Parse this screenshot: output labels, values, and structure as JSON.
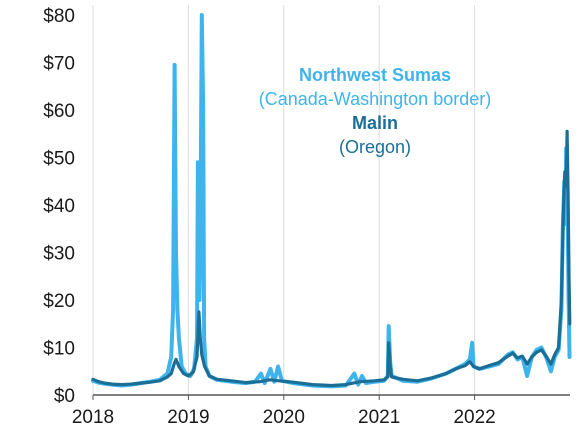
{
  "chart_data": {
    "type": "line",
    "x_axis": {
      "min": 2018,
      "max": 2023,
      "ticks": [
        "2018",
        "2019",
        "2020",
        "2021",
        "2022"
      ]
    },
    "y_axis": {
      "min": 0,
      "max": 80,
      "ticks": [
        "$0",
        "$10",
        "$20",
        "$30",
        "$40",
        "$50",
        "$60",
        "$70",
        "$80"
      ]
    },
    "grid": {
      "vertical": true,
      "horizontal": false
    },
    "legend": {
      "placement": "top-center",
      "entries": [
        {
          "name": "Northwest Sumas",
          "sub": "(Canada-Washington border)",
          "color": "#3fb4ec"
        },
        {
          "name": "Malin",
          "sub": "(Oregon)",
          "color": "#1b6f97"
        }
      ]
    },
    "series": [
      {
        "name": "Northwest Sumas",
        "color": "#3fb4ec",
        "points": [
          [
            2018.0,
            3.0
          ],
          [
            2018.06,
            2.6
          ],
          [
            2018.12,
            2.4
          ],
          [
            2018.2,
            2.2
          ],
          [
            2018.3,
            2.0
          ],
          [
            2018.4,
            2.2
          ],
          [
            2018.5,
            2.5
          ],
          [
            2018.6,
            2.8
          ],
          [
            2018.7,
            3.2
          ],
          [
            2018.78,
            4.5
          ],
          [
            2018.82,
            8.0
          ],
          [
            2018.84,
            18.0
          ],
          [
            2018.855,
            69.5
          ],
          [
            2018.87,
            30.0
          ],
          [
            2018.885,
            18.0
          ],
          [
            2018.9,
            12.0
          ],
          [
            2018.93,
            6.0
          ],
          [
            2018.97,
            4.5
          ],
          [
            2019.02,
            4.0
          ],
          [
            2019.06,
            5.5
          ],
          [
            2019.09,
            12.0
          ],
          [
            2019.1,
            49.0
          ],
          [
            2019.115,
            20.0
          ],
          [
            2019.125,
            30.0
          ],
          [
            2019.14,
            80.0
          ],
          [
            2019.155,
            60.0
          ],
          [
            2019.165,
            12.0
          ],
          [
            2019.18,
            6.0
          ],
          [
            2019.22,
            4.0
          ],
          [
            2019.3,
            3.2
          ],
          [
            2019.45,
            2.8
          ],
          [
            2019.6,
            2.5
          ],
          [
            2019.7,
            2.8
          ],
          [
            2019.76,
            4.5
          ],
          [
            2019.8,
            2.5
          ],
          [
            2019.86,
            5.5
          ],
          [
            2019.9,
            2.8
          ],
          [
            2019.94,
            6.0
          ],
          [
            2019.98,
            3.0
          ],
          [
            2020.1,
            2.5
          ],
          [
            2020.3,
            2.0
          ],
          [
            2020.5,
            1.8
          ],
          [
            2020.65,
            2.0
          ],
          [
            2020.74,
            4.5
          ],
          [
            2020.78,
            2.2
          ],
          [
            2020.82,
            4.0
          ],
          [
            2020.86,
            2.5
          ],
          [
            2020.95,
            2.8
          ],
          [
            2021.05,
            3.0
          ],
          [
            2021.09,
            4.0
          ],
          [
            2021.1,
            14.5
          ],
          [
            2021.115,
            7.0
          ],
          [
            2021.13,
            4.0
          ],
          [
            2021.25,
            3.0
          ],
          [
            2021.4,
            2.8
          ],
          [
            2021.55,
            3.5
          ],
          [
            2021.7,
            4.5
          ],
          [
            2021.8,
            5.5
          ],
          [
            2021.9,
            6.5
          ],
          [
            2021.95,
            7.5
          ],
          [
            2021.975,
            11.0
          ],
          [
            2021.99,
            6.0
          ],
          [
            2022.05,
            5.5
          ],
          [
            2022.15,
            6.0
          ],
          [
            2022.25,
            6.5
          ],
          [
            2022.35,
            8.5
          ],
          [
            2022.4,
            9.0
          ],
          [
            2022.45,
            7.5
          ],
          [
            2022.5,
            8.0
          ],
          [
            2022.55,
            4.0
          ],
          [
            2022.6,
            8.0
          ],
          [
            2022.65,
            9.5
          ],
          [
            2022.7,
            10.0
          ],
          [
            2022.75,
            8.0
          ],
          [
            2022.8,
            5.0
          ],
          [
            2022.84,
            8.0
          ],
          [
            2022.88,
            9.5
          ],
          [
            2022.91,
            18.0
          ],
          [
            2022.925,
            35.0
          ],
          [
            2022.94,
            45.0
          ],
          [
            2022.95,
            36.0
          ],
          [
            2022.96,
            52.0
          ],
          [
            2022.975,
            40.0
          ],
          [
            2022.985,
            20.0
          ],
          [
            2022.995,
            8.0
          ]
        ]
      },
      {
        "name": "Malin",
        "color": "#1b6f97",
        "points": [
          [
            2018.0,
            3.3
          ],
          [
            2018.06,
            2.8
          ],
          [
            2018.12,
            2.5
          ],
          [
            2018.2,
            2.3
          ],
          [
            2018.3,
            2.2
          ],
          [
            2018.4,
            2.3
          ],
          [
            2018.5,
            2.5
          ],
          [
            2018.6,
            2.7
          ],
          [
            2018.7,
            3.0
          ],
          [
            2018.78,
            3.8
          ],
          [
            2018.82,
            4.5
          ],
          [
            2018.85,
            6.5
          ],
          [
            2018.87,
            7.5
          ],
          [
            2018.9,
            6.0
          ],
          [
            2018.95,
            4.5
          ],
          [
            2019.0,
            4.0
          ],
          [
            2019.05,
            4.8
          ],
          [
            2019.09,
            8.0
          ],
          [
            2019.11,
            17.5
          ],
          [
            2019.125,
            12.0
          ],
          [
            2019.14,
            8.5
          ],
          [
            2019.17,
            6.0
          ],
          [
            2019.22,
            4.0
          ],
          [
            2019.3,
            3.3
          ],
          [
            2019.45,
            3.0
          ],
          [
            2019.6,
            2.6
          ],
          [
            2019.75,
            2.8
          ],
          [
            2019.85,
            3.2
          ],
          [
            2019.95,
            3.0
          ],
          [
            2020.1,
            2.7
          ],
          [
            2020.3,
            2.2
          ],
          [
            2020.5,
            2.0
          ],
          [
            2020.65,
            2.2
          ],
          [
            2020.8,
            2.8
          ],
          [
            2020.95,
            3.0
          ],
          [
            2021.05,
            3.2
          ],
          [
            2021.09,
            3.8
          ],
          [
            2021.1,
            11.0
          ],
          [
            2021.115,
            6.0
          ],
          [
            2021.13,
            3.8
          ],
          [
            2021.25,
            3.3
          ],
          [
            2021.4,
            3.0
          ],
          [
            2021.55,
            3.6
          ],
          [
            2021.7,
            4.5
          ],
          [
            2021.8,
            5.5
          ],
          [
            2021.9,
            6.2
          ],
          [
            2021.95,
            7.0
          ],
          [
            2021.99,
            6.0
          ],
          [
            2022.05,
            5.5
          ],
          [
            2022.15,
            6.2
          ],
          [
            2022.25,
            6.8
          ],
          [
            2022.35,
            8.2
          ],
          [
            2022.4,
            8.8
          ],
          [
            2022.45,
            7.8
          ],
          [
            2022.5,
            8.2
          ],
          [
            2022.55,
            6.5
          ],
          [
            2022.6,
            8.0
          ],
          [
            2022.65,
            9.0
          ],
          [
            2022.7,
            9.5
          ],
          [
            2022.75,
            8.2
          ],
          [
            2022.8,
            6.5
          ],
          [
            2022.84,
            8.5
          ],
          [
            2022.88,
            10.0
          ],
          [
            2022.91,
            20.0
          ],
          [
            2022.93,
            38.0
          ],
          [
            2022.945,
            47.0
          ],
          [
            2022.96,
            44.0
          ],
          [
            2022.97,
            55.5
          ],
          [
            2022.98,
            42.0
          ],
          [
            2022.99,
            25.0
          ],
          [
            2022.998,
            15.0
          ]
        ]
      }
    ]
  }
}
